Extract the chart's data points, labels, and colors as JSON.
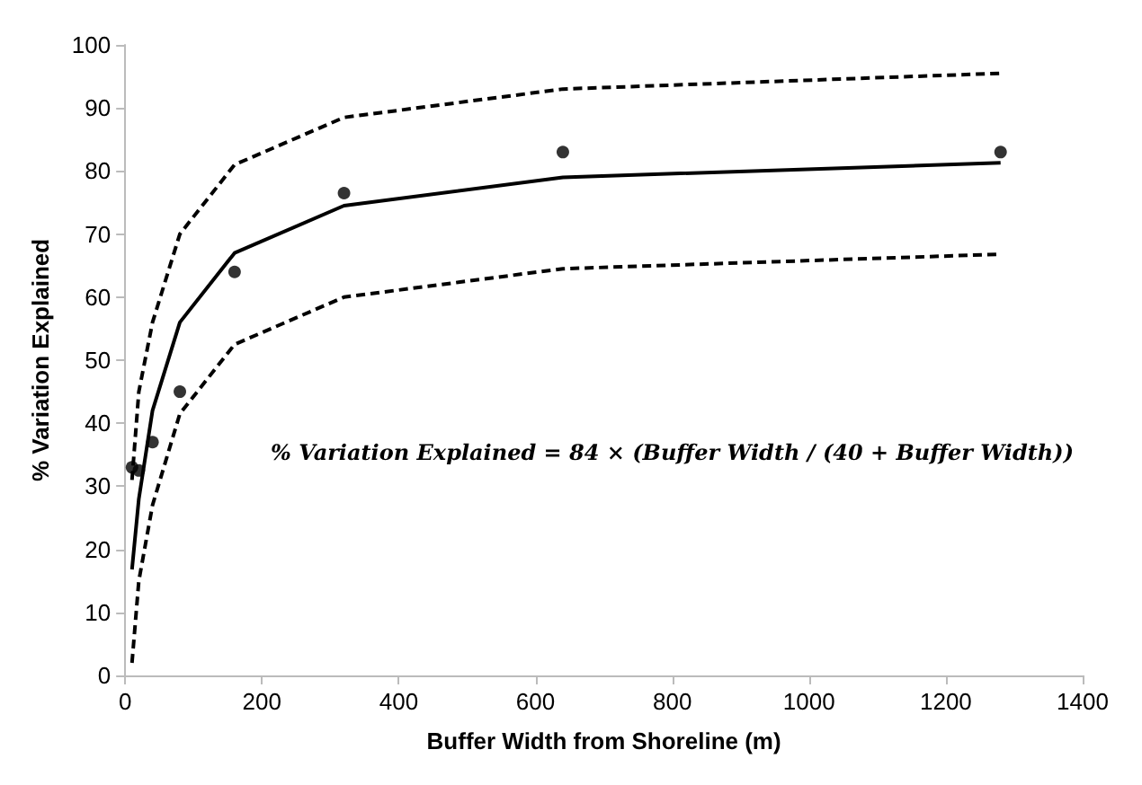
{
  "chart_data": {
    "type": "line",
    "xlabel": "Buffer Width from Shoreline (m)",
    "ylabel": "% Variation Explained",
    "x": [
      10,
      20,
      40,
      80,
      160,
      320,
      640,
      1280
    ],
    "series": [
      {
        "type": "scatter",
        "color": "#000000",
        "marker": "circle",
        "values": [
          33,
          32.5,
          37,
          45,
          64,
          76.5,
          83,
          83
        ]
      },
      {
        "color": "#000000",
        "marker": "none",
        "line_style": "solid",
        "values": [
          16.8,
          28,
          42,
          56,
          67,
          74.5,
          79,
          81.3
        ]
      },
      {
        "color": "#000000",
        "marker": "none",
        "line_style": "dashed",
        "values": [
          31,
          45,
          56,
          70,
          81,
          88.5,
          93,
          95.5
        ]
      },
      {
        "color": "#000000",
        "marker": "none",
        "line_style": "dashed",
        "values": [
          2,
          15,
          27,
          41.5,
          52.5,
          60,
          64.5,
          66.8
        ]
      }
    ],
    "xlim": [
      0,
      1400
    ],
    "xticks": [
      0,
      200,
      400,
      600,
      800,
      1000,
      1200,
      1400
    ],
    "ylim": [
      0,
      100
    ],
    "yticks": [
      0,
      10,
      20,
      30,
      40,
      50,
      60,
      70,
      80,
      90,
      100
    ],
    "grid": false,
    "annotations": [
      "% Variation Explained = 84 × (Buffer Width / (40 + Buffer Width))"
    ]
  }
}
